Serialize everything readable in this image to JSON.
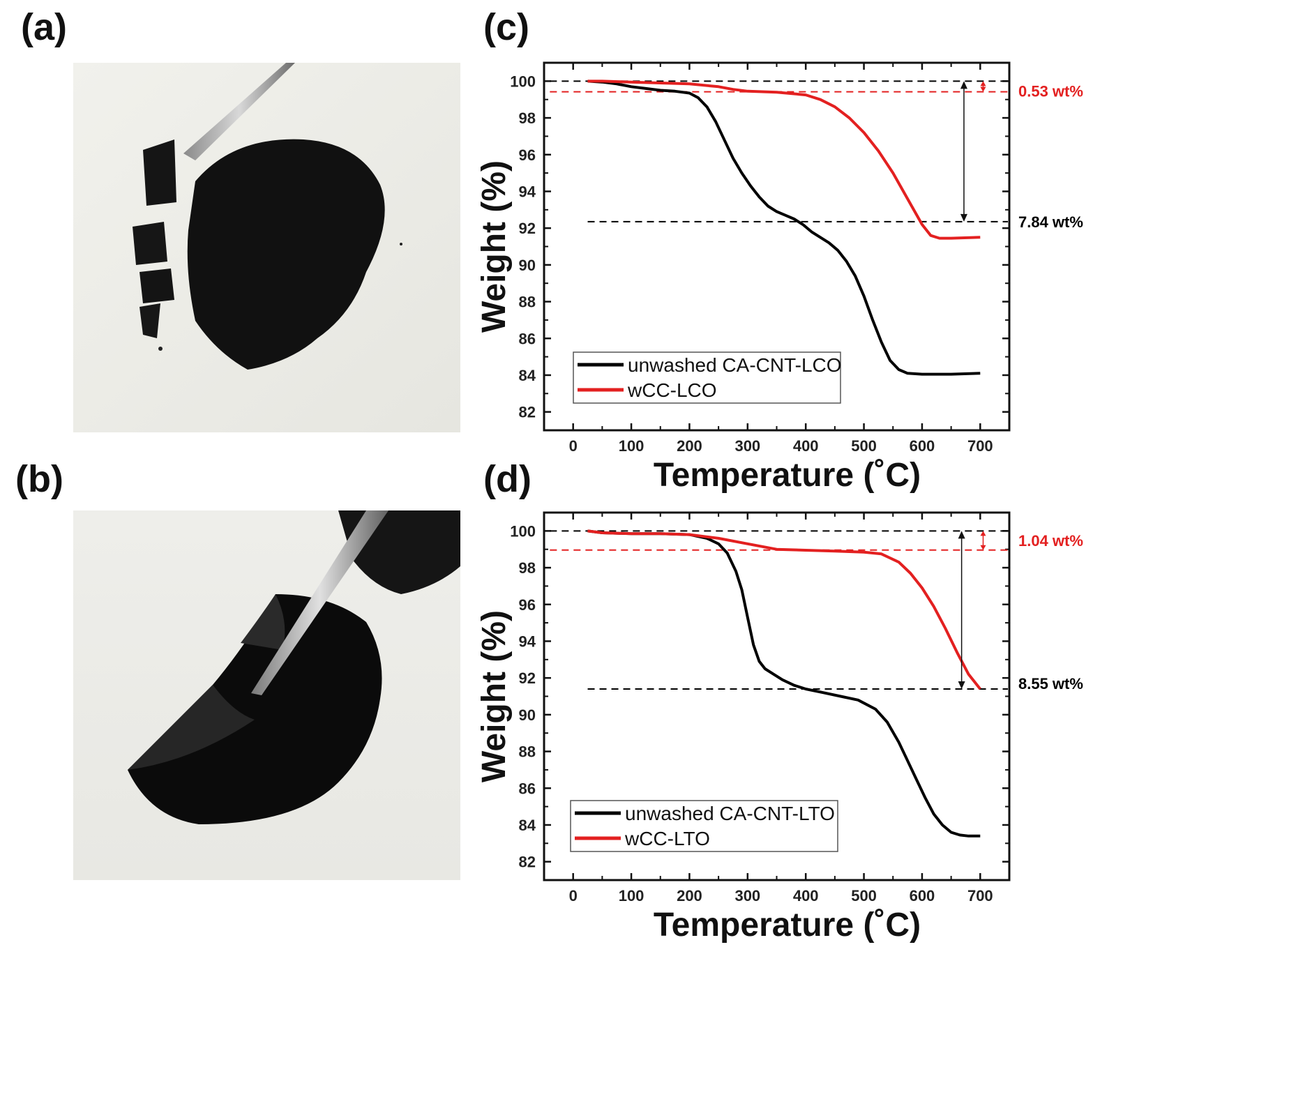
{
  "panels": {
    "a": "(a)",
    "b": "(b)",
    "c": "(c)",
    "d": "(d)"
  },
  "chart_data": [
    {
      "panel": "(c)",
      "type": "line",
      "xlabel": "Temperature (˚C)",
      "ylabel": "Weight (%)",
      "xlim": [
        -50,
        750
      ],
      "ylim": [
        81,
        101
      ],
      "xticks": [
        0,
        100,
        200,
        300,
        400,
        500,
        600,
        700
      ],
      "yticks": [
        82,
        84,
        86,
        88,
        90,
        92,
        94,
        96,
        98,
        100
      ],
      "legend_position": "bottom-left",
      "series": [
        {
          "name": "unwashed CA-CNT-LCO",
          "color": "#000000",
          "x": [
            25,
            50,
            75,
            100,
            125,
            150,
            175,
            200,
            215,
            230,
            245,
            260,
            275,
            290,
            305,
            320,
            335,
            350,
            365,
            380,
            395,
            410,
            425,
            440,
            455,
            470,
            485,
            500,
            515,
            530,
            545,
            560,
            575,
            600,
            650,
            700
          ],
          "y": [
            100,
            99.95,
            99.85,
            99.7,
            99.6,
            99.5,
            99.45,
            99.35,
            99.1,
            98.6,
            97.8,
            96.8,
            95.8,
            95.0,
            94.3,
            93.7,
            93.2,
            92.9,
            92.7,
            92.5,
            92.2,
            91.8,
            91.5,
            91.2,
            90.8,
            90.2,
            89.4,
            88.3,
            87.0,
            85.8,
            84.8,
            84.3,
            84.1,
            84.05,
            84.05,
            84.1
          ]
        },
        {
          "name": "wCC-LCO",
          "color": "#e32020",
          "x": [
            25,
            50,
            100,
            150,
            200,
            250,
            275,
            300,
            350,
            400,
            425,
            450,
            475,
            500,
            525,
            550,
            575,
            600,
            615,
            630,
            650,
            700
          ],
          "y": [
            100,
            100,
            99.95,
            99.9,
            99.85,
            99.7,
            99.55,
            99.45,
            99.4,
            99.25,
            99.0,
            98.6,
            98.0,
            97.2,
            96.2,
            95.0,
            93.6,
            92.2,
            91.6,
            91.45,
            91.45,
            91.5
          ]
        }
      ],
      "annotations": [
        {
          "text": "0.53 wt%",
          "color": "#e32020",
          "y_ref": 99.47
        },
        {
          "text": "7.84 wt%",
          "color": "#000000",
          "y_ref": 92.35
        }
      ],
      "reference_lines": [
        {
          "y": 100,
          "color": "#000000"
        },
        {
          "y": 99.42,
          "color": "#e32020"
        },
        {
          "y": 92.35,
          "color": "#000000"
        }
      ]
    },
    {
      "panel": "(d)",
      "type": "line",
      "xlabel": "Temperature (˚C)",
      "ylabel": "Weight (%)",
      "xlim": [
        -50,
        750
      ],
      "ylim": [
        81,
        101
      ],
      "xticks": [
        0,
        100,
        200,
        300,
        400,
        500,
        600,
        700
      ],
      "yticks": [
        82,
        84,
        86,
        88,
        90,
        92,
        94,
        96,
        98,
        100
      ],
      "legend_position": "bottom-left",
      "series": [
        {
          "name": "unwashed CA-CNT-LTO",
          "color": "#000000",
          "x": [
            25,
            50,
            100,
            150,
            200,
            230,
            250,
            265,
            280,
            290,
            300,
            310,
            320,
            330,
            345,
            360,
            380,
            400,
            430,
            460,
            490,
            520,
            540,
            560,
            575,
            590,
            605,
            620,
            635,
            650,
            665,
            680,
            700
          ],
          "y": [
            100,
            99.9,
            99.85,
            99.85,
            99.8,
            99.6,
            99.3,
            98.8,
            97.8,
            96.8,
            95.3,
            93.8,
            92.9,
            92.5,
            92.2,
            91.9,
            91.6,
            91.4,
            91.2,
            91.0,
            90.8,
            90.3,
            89.6,
            88.5,
            87.5,
            86.5,
            85.5,
            84.6,
            84.0,
            83.6,
            83.45,
            83.4,
            83.4
          ]
        },
        {
          "name": "wCC-LTO",
          "color": "#e32020",
          "x": [
            25,
            50,
            100,
            150,
            200,
            250,
            300,
            350,
            400,
            450,
            500,
            530,
            560,
            580,
            600,
            620,
            640,
            660,
            680,
            700
          ],
          "y": [
            100,
            99.9,
            99.85,
            99.85,
            99.8,
            99.6,
            99.3,
            99.0,
            98.95,
            98.9,
            98.85,
            98.75,
            98.3,
            97.7,
            96.9,
            95.9,
            94.7,
            93.4,
            92.2,
            91.4
          ]
        }
      ],
      "annotations": [
        {
          "text": "1.04 wt%",
          "color": "#e32020",
          "y_ref": 99.48
        },
        {
          "text": "8.55 wt%",
          "color": "#000000",
          "y_ref": 91.7
        }
      ],
      "reference_lines": [
        {
          "y": 100,
          "color": "#000000"
        },
        {
          "y": 98.96,
          "color": "#e32020"
        },
        {
          "y": 91.4,
          "color": "#000000"
        }
      ]
    }
  ]
}
